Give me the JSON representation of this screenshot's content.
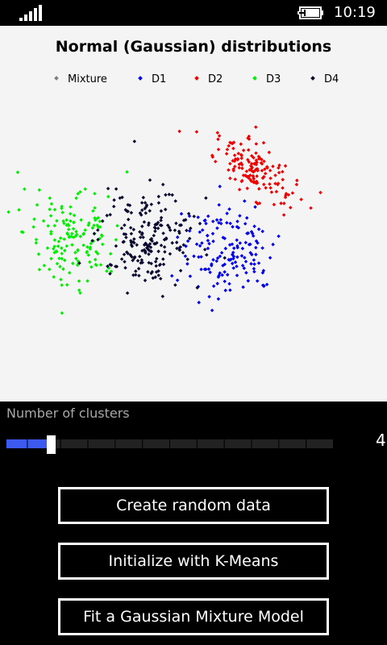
{
  "status": {
    "time": "10:19"
  },
  "chart_data": {
    "type": "scatter",
    "title": "Normal (Gaussian) distributions",
    "series": [
      {
        "name": "Mixture",
        "color": "#808080",
        "points": []
      },
      {
        "name": "D1",
        "color": "#0000ee",
        "center": [
          282,
          310
        ],
        "spread": [
          30,
          30
        ],
        "count": 150
      },
      {
        "name": "D2",
        "color": "#ee0000",
        "center": [
          316,
          212
        ],
        "spread": [
          30,
          22
        ],
        "count": 150
      },
      {
        "name": "D3",
        "color": "#00ee00",
        "center": [
          90,
          290
        ],
        "spread": [
          30,
          30
        ],
        "count": 150
      },
      {
        "name": "D4",
        "color": "#0a0a30",
        "center": [
          184,
          296
        ],
        "spread": [
          30,
          30
        ],
        "count": 200
      }
    ]
  },
  "controls": {
    "slider_label": "Number of clusters",
    "slider_value": "4",
    "slider_fraction": 0.125
  },
  "buttons": {
    "create": "Create random data",
    "init": "Initialize with K-Means",
    "fit": "Fit a Gaussian Mixture Model"
  }
}
